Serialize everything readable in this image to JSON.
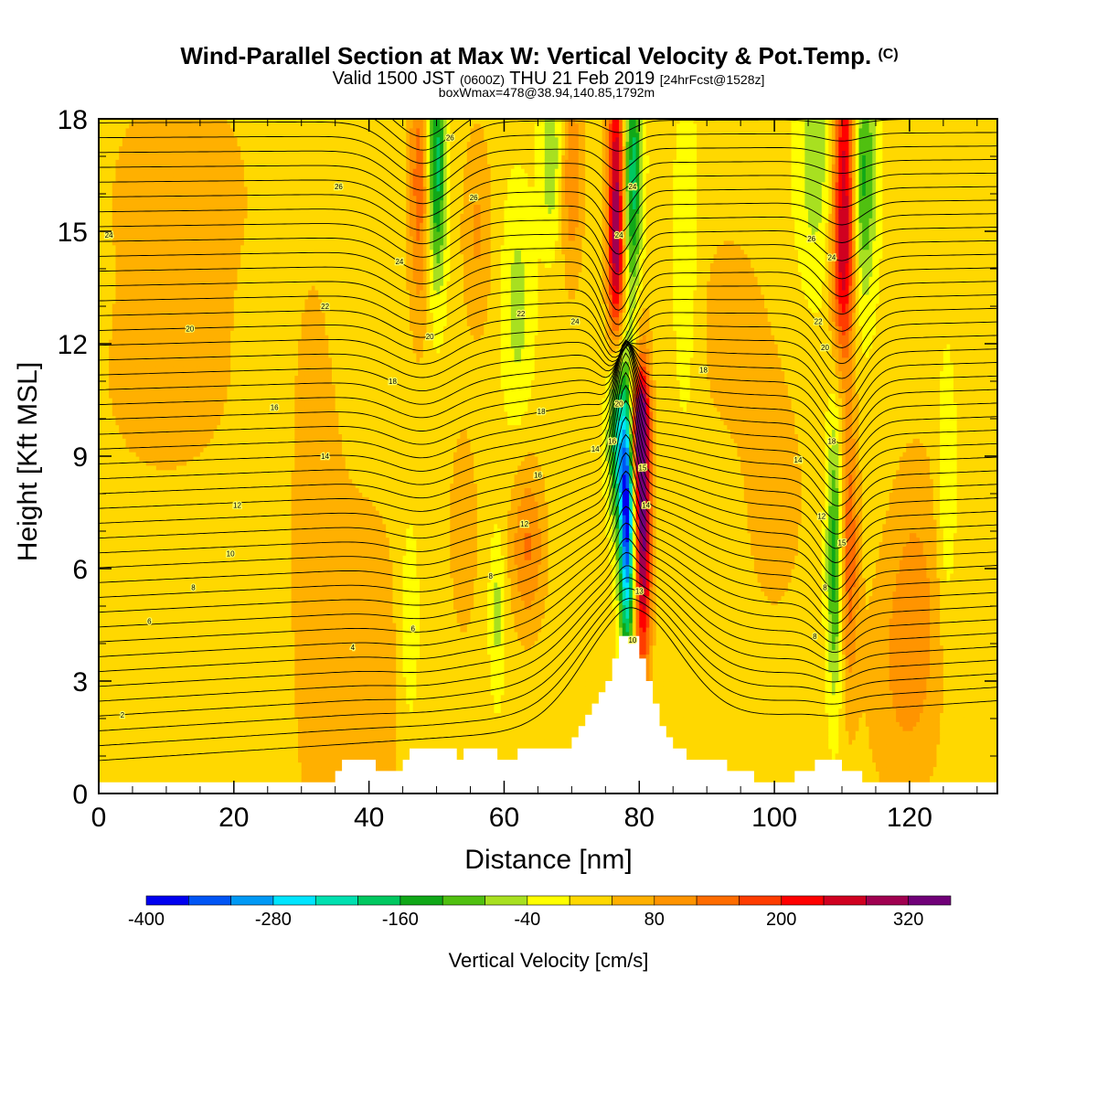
{
  "chart_data": {
    "type": "heatmap",
    "title": "Wind-Parallel Section at Max W: Vertical Velocity & Pot.Temp.",
    "title_mark": "(C)",
    "subtitle_parts": [
      "Valid 1500 JST",
      "(0600Z)",
      "THU 21 Feb 2019",
      "[24hrFcst@1528z]"
    ],
    "subtitle2": "boxWmax=478@38.94,140.85,1792m",
    "xlabel": "Distance [nm]",
    "ylabel": "Height [Kft MSL]",
    "xlim": [
      0,
      133
    ],
    "ylim": [
      0,
      18
    ],
    "xticks": [
      0,
      20,
      40,
      60,
      80,
      100,
      120
    ],
    "yticks": [
      0,
      3,
      6,
      9,
      12,
      15,
      18
    ],
    "colorbar": {
      "label": "Vertical Velocity [cm/s]",
      "min": -400,
      "max": 360,
      "step": 40,
      "tick_values": [
        -400,
        -280,
        -160,
        -40,
        80,
        200,
        320
      ],
      "colors": [
        "#0000f0",
        "#0055f5",
        "#0099f5",
        "#00e5ff",
        "#00e0b0",
        "#00c860",
        "#10a818",
        "#50c010",
        "#a8e020",
        "#ffff00",
        "#ffd800",
        "#ffb000",
        "#ff9400",
        "#ff6c00",
        "#ff3c00",
        "#ff0000",
        "#d00020",
        "#a00050",
        "#700078"
      ]
    },
    "terrain": [
      [
        0,
        0.3
      ],
      [
        35,
        0.3
      ],
      [
        35,
        0.6
      ],
      [
        36,
        0.6
      ],
      [
        36,
        0.9
      ],
      [
        41,
        0.9
      ],
      [
        41,
        0.6
      ],
      [
        45,
        0.6
      ],
      [
        45,
        0.9
      ],
      [
        46,
        0.9
      ],
      [
        46,
        1.2
      ],
      [
        53,
        1.2
      ],
      [
        53,
        0.9
      ],
      [
        54,
        0.9
      ],
      [
        54,
        1.2
      ],
      [
        59,
        1.2
      ],
      [
        59,
        0.9
      ],
      [
        62,
        0.9
      ],
      [
        62,
        1.2
      ],
      [
        70,
        1.2
      ],
      [
        70,
        1.5
      ],
      [
        71,
        1.5
      ],
      [
        71,
        1.8
      ],
      [
        72,
        1.8
      ],
      [
        72,
        2.1
      ],
      [
        73,
        2.1
      ],
      [
        73,
        2.4
      ],
      [
        74,
        2.4
      ],
      [
        74,
        2.7
      ],
      [
        75,
        2.7
      ],
      [
        75,
        3.0
      ],
      [
        76,
        3.0
      ],
      [
        76,
        3.6
      ],
      [
        77,
        3.6
      ],
      [
        77,
        4.2
      ],
      [
        80,
        4.2
      ],
      [
        80,
        3.6
      ],
      [
        81,
        3.6
      ],
      [
        81,
        3.0
      ],
      [
        82,
        3.0
      ],
      [
        82,
        2.4
      ],
      [
        83,
        2.4
      ],
      [
        83,
        1.8
      ],
      [
        84,
        1.8
      ],
      [
        84,
        1.5
      ],
      [
        85,
        1.5
      ],
      [
        85,
        1.2
      ],
      [
        87,
        1.2
      ],
      [
        87,
        0.9
      ],
      [
        93,
        0.9
      ],
      [
        93,
        0.6
      ],
      [
        97,
        0.6
      ],
      [
        97,
        0.3
      ],
      [
        103,
        0.3
      ],
      [
        103,
        0.6
      ],
      [
        106,
        0.6
      ],
      [
        106,
        0.9
      ],
      [
        110,
        0.9
      ],
      [
        110,
        0.6
      ],
      [
        113,
        0.6
      ],
      [
        113,
        0.3
      ],
      [
        133,
        0.3
      ],
      [
        133,
        0
      ],
      [
        0,
        0
      ]
    ],
    "w_features": [
      {
        "x": 80.5,
        "y": 7.2,
        "sx": 0.9,
        "sy": 2.8,
        "w": 330
      },
      {
        "x": 80.0,
        "y": 9.8,
        "sx": 0.9,
        "sy": 1.0,
        "w": 240
      },
      {
        "x": 78.2,
        "y": 7.2,
        "sx": 0.8,
        "sy": 2.4,
        "w": -380
      },
      {
        "x": 76.8,
        "y": 9.5,
        "sx": 1.0,
        "sy": 1.6,
        "w": -200
      },
      {
        "x": 76.6,
        "y": 16.8,
        "sx": 0.9,
        "sy": 2.8,
        "w": 240
      },
      {
        "x": 76.6,
        "y": 14.0,
        "sx": 0.9,
        "sy": 1.6,
        "w": 140
      },
      {
        "x": 79.0,
        "y": 16.5,
        "sx": 1.0,
        "sy": 2.4,
        "w": -200
      },
      {
        "x": 110.5,
        "y": 16.8,
        "sx": 1.2,
        "sy": 3.0,
        "w": 250
      },
      {
        "x": 110.0,
        "y": 13.8,
        "sx": 1.2,
        "sy": 1.6,
        "w": 110
      },
      {
        "x": 113.0,
        "y": 16.5,
        "sx": 1.4,
        "sy": 2.4,
        "w": -160
      },
      {
        "x": 106.0,
        "y": 17.0,
        "sx": 2.0,
        "sy": 2.5,
        "w": -80
      },
      {
        "x": 109.0,
        "y": 6.3,
        "sx": 0.9,
        "sy": 2.6,
        "w": -170
      },
      {
        "x": 111.0,
        "y": 6.6,
        "sx": 1.0,
        "sy": 2.6,
        "w": 140
      },
      {
        "x": 50.0,
        "y": 16.8,
        "sx": 1.0,
        "sy": 2.3,
        "w": -200
      },
      {
        "x": 47.5,
        "y": 16.3,
        "sx": 1.2,
        "sy": 2.6,
        "w": 130
      },
      {
        "x": 67.0,
        "y": 17.0,
        "sx": 1.2,
        "sy": 1.6,
        "w": -90
      },
      {
        "x": 70.0,
        "y": 16.5,
        "sx": 1.2,
        "sy": 2.0,
        "w": 100
      },
      {
        "x": 62.0,
        "y": 13.0,
        "sx": 1.6,
        "sy": 2.2,
        "w": -70
      },
      {
        "x": 56.0,
        "y": 15.0,
        "sx": 1.6,
        "sy": 2.0,
        "w": 70
      },
      {
        "x": 63.5,
        "y": 6.6,
        "sx": 1.8,
        "sy": 1.6,
        "w": 110
      },
      {
        "x": 59.0,
        "y": 4.8,
        "sx": 0.8,
        "sy": 1.5,
        "w": -70
      },
      {
        "x": 54.0,
        "y": 7.0,
        "sx": 1.5,
        "sy": 2.0,
        "w": 60
      },
      {
        "x": 46.0,
        "y": 4.5,
        "sx": 1.0,
        "sy": 2.0,
        "w": -60
      },
      {
        "x": 125.5,
        "y": 8.0,
        "sx": 1.0,
        "sy": 2.5,
        "w": -60
      },
      {
        "x": 121.0,
        "y": 5.2,
        "sx": 3.0,
        "sy": 3.0,
        "w": 65
      },
      {
        "x": 40.0,
        "y": 3.0,
        "sx": 4.0,
        "sy": 4.0,
        "w": 50
      },
      {
        "x": 32.0,
        "y": 6.0,
        "sx": 3.0,
        "sy": 6.0,
        "w": 45
      },
      {
        "x": 12.0,
        "y": 16.0,
        "sx": 10.0,
        "sy": 3.0,
        "w": 40
      },
      {
        "x": 10.0,
        "y": 10.5,
        "sx": 8.0,
        "sy": 2.0,
        "w": 35
      },
      {
        "x": 93.0,
        "y": 12.5,
        "sx": 4.0,
        "sy": 2.0,
        "w": 45
      },
      {
        "x": 118.0,
        "y": 3.0,
        "sx": 4.0,
        "sy": 2.5,
        "w": 45
      },
      {
        "x": 100.0,
        "y": 8.0,
        "sx": 4.0,
        "sy": 3.0,
        "w": 40
      },
      {
        "x": 87.0,
        "y": 14.0,
        "sx": 1.5,
        "sy": 3.0,
        "w": -50
      }
    ],
    "theta_contours": {
      "count": 46,
      "base_height": 1.6,
      "spacing": 0.38,
      "color": "#000000",
      "labels": [
        {
          "x": 3.5,
          "y": 2.1,
          "text": "2"
        },
        {
          "x": 37.6,
          "y": 3.9,
          "text": "4"
        },
        {
          "x": 7.5,
          "y": 4.6,
          "text": "6"
        },
        {
          "x": 46.5,
          "y": 4.4,
          "text": "6"
        },
        {
          "x": 14.0,
          "y": 5.5,
          "text": "8"
        },
        {
          "x": 58.0,
          "y": 5.8,
          "text": "8"
        },
        {
          "x": 107.5,
          "y": 5.5,
          "text": "8"
        },
        {
          "x": 106.0,
          "y": 4.2,
          "text": "8"
        },
        {
          "x": 19.5,
          "y": 6.4,
          "text": "10"
        },
        {
          "x": 79.0,
          "y": 4.1,
          "text": "10"
        },
        {
          "x": 20.5,
          "y": 7.7,
          "text": "12"
        },
        {
          "x": 63.0,
          "y": 7.2,
          "text": "12"
        },
        {
          "x": 107.0,
          "y": 7.4,
          "text": "12"
        },
        {
          "x": 80.0,
          "y": 5.4,
          "text": "13"
        },
        {
          "x": 33.5,
          "y": 9.0,
          "text": "14"
        },
        {
          "x": 73.5,
          "y": 9.2,
          "text": "14"
        },
        {
          "x": 103.5,
          "y": 8.9,
          "text": "14"
        },
        {
          "x": 81.0,
          "y": 7.7,
          "text": "14"
        },
        {
          "x": 26.0,
          "y": 10.3,
          "text": "16"
        },
        {
          "x": 65.0,
          "y": 8.5,
          "text": "16"
        },
        {
          "x": 80.5,
          "y": 8.7,
          "text": "15"
        },
        {
          "x": 110.0,
          "y": 6.7,
          "text": "15"
        },
        {
          "x": 43.5,
          "y": 11.0,
          "text": "18"
        },
        {
          "x": 65.5,
          "y": 10.2,
          "text": "18"
        },
        {
          "x": 89.5,
          "y": 11.3,
          "text": "18"
        },
        {
          "x": 108.5,
          "y": 9.4,
          "text": "18"
        },
        {
          "x": 76.0,
          "y": 9.4,
          "text": "16"
        },
        {
          "x": 13.5,
          "y": 12.4,
          "text": "20"
        },
        {
          "x": 49.0,
          "y": 12.2,
          "text": "20"
        },
        {
          "x": 77.0,
          "y": 10.4,
          "text": "20"
        },
        {
          "x": 107.5,
          "y": 11.9,
          "text": "20"
        },
        {
          "x": 33.5,
          "y": 13.0,
          "text": "22"
        },
        {
          "x": 62.5,
          "y": 12.8,
          "text": "22"
        },
        {
          "x": 106.5,
          "y": 12.6,
          "text": "22"
        },
        {
          "x": 1.5,
          "y": 14.9,
          "text": "24"
        },
        {
          "x": 44.5,
          "y": 14.2,
          "text": "24"
        },
        {
          "x": 70.5,
          "y": 12.6,
          "text": "24"
        },
        {
          "x": 77.0,
          "y": 14.9,
          "text": "24"
        },
        {
          "x": 108.5,
          "y": 14.3,
          "text": "24"
        },
        {
          "x": 35.5,
          "y": 16.2,
          "text": "26"
        },
        {
          "x": 55.5,
          "y": 15.9,
          "text": "26"
        },
        {
          "x": 79.0,
          "y": 16.2,
          "text": "24"
        },
        {
          "x": 105.5,
          "y": 14.8,
          "text": "26"
        },
        {
          "x": 52.0,
          "y": 17.5,
          "text": "26"
        }
      ]
    }
  }
}
